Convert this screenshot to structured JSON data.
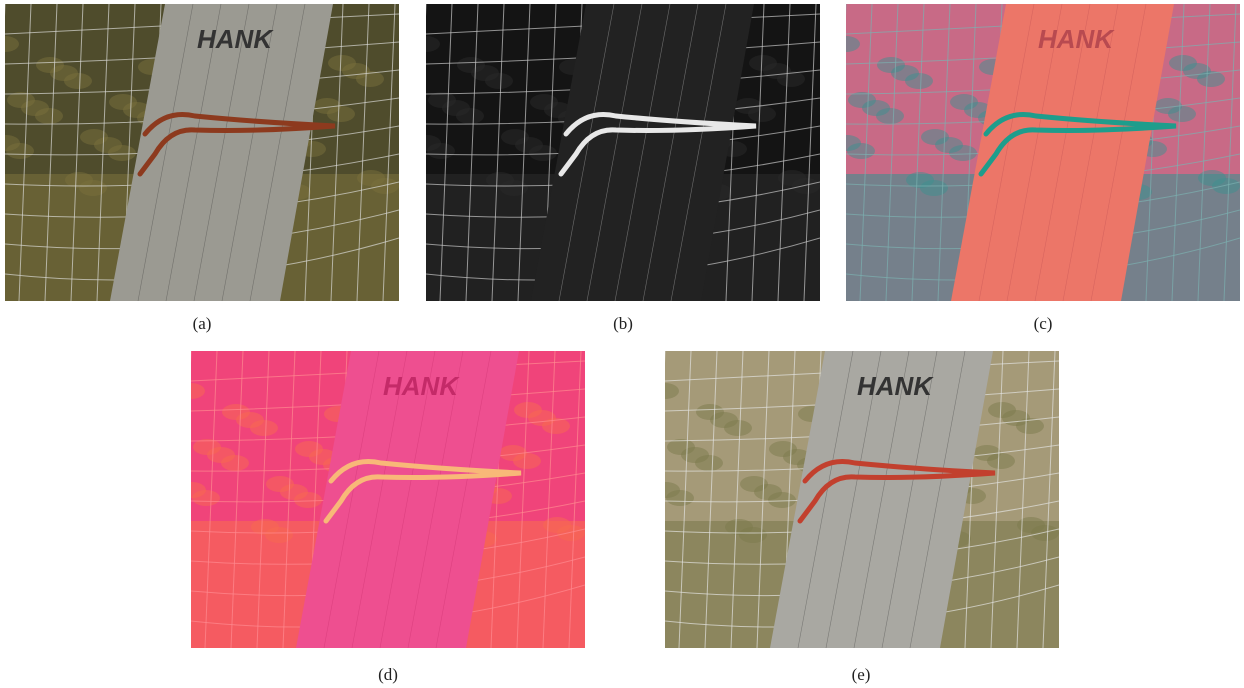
{
  "panels": [
    {
      "label": "(a)",
      "board_text": "HANK"
    },
    {
      "label": "(b)"
    },
    {
      "label": "(c)",
      "board_text": "HANK"
    },
    {
      "label": "(d)",
      "board_text": "HANK"
    },
    {
      "label": "(e)",
      "board_text": "HANK"
    }
  ]
}
